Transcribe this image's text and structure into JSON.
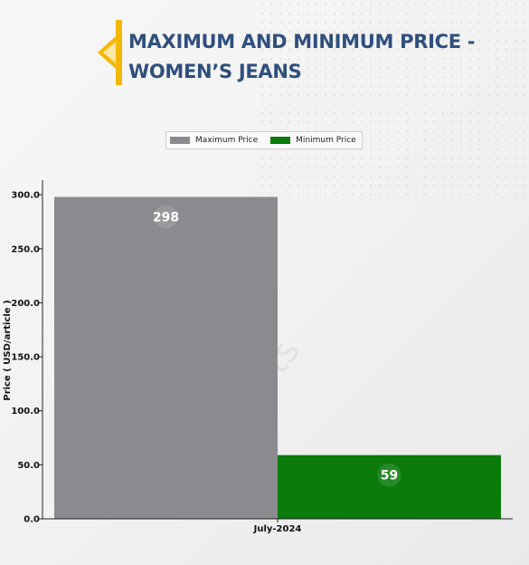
{
  "header": {
    "title_line1": "MAXIMUM AND MINIMUM PRICE -",
    "title_line2": "WOMEN’S JEANS",
    "accent_color": "#f5b800"
  },
  "watermark": {
    "text": "DNJ Reports"
  },
  "chart_data": {
    "type": "bar",
    "title": "MAXIMUM AND MINIMUM PRICE - WOMEN’S JEANS",
    "categories": [
      "July-2024"
    ],
    "series": [
      {
        "name": "Maximum Price",
        "values": [
          298
        ],
        "color": "#8a8b8f"
      },
      {
        "name": "Minimum Price",
        "values": [
          59
        ],
        "color": "#0a7a0a"
      }
    ],
    "xlabel": "",
    "ylabel": "Price ( USD/article )",
    "ylim": [
      0,
      300
    ],
    "yticks": [
      "0.0",
      "50.0",
      "100.0",
      "150.0",
      "200.0",
      "250.0",
      "300.0"
    ],
    "grid": false,
    "legend_position": "top-center"
  }
}
